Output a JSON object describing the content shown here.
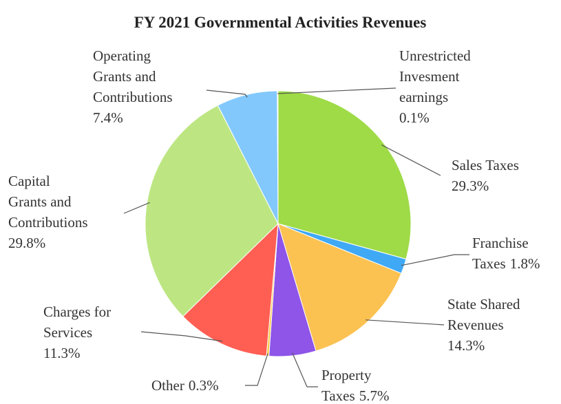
{
  "chart_data": {
    "type": "pie",
    "title": "FY 2021 Governmental Activities Revenues",
    "categories": [
      "Sales Taxes",
      "Franchise Taxes",
      "State Shared Revenues",
      "Property Taxes",
      "Other",
      "Charges for Services",
      "Capital Grants and Contributions",
      "Operating Grants and Contributions",
      "Unrestricted Invesment earnings"
    ],
    "values": [
      29.3,
      1.8,
      14.3,
      5.7,
      0.3,
      11.3,
      29.8,
      7.4,
      0.1
    ],
    "value_labels": [
      "29.3%",
      "1.8%",
      "14.3%",
      "5.7%",
      "0.3%",
      "11.3%",
      "29.8%",
      "7.4%",
      "0.1%"
    ],
    "colors": [
      "#9edb47",
      "#3fa9f5",
      "#fbc252",
      "#8e55e8",
      "#f7c948",
      "#ff5e52",
      "#bde683",
      "#82c8fc",
      "#c9e96d"
    ]
  }
}
